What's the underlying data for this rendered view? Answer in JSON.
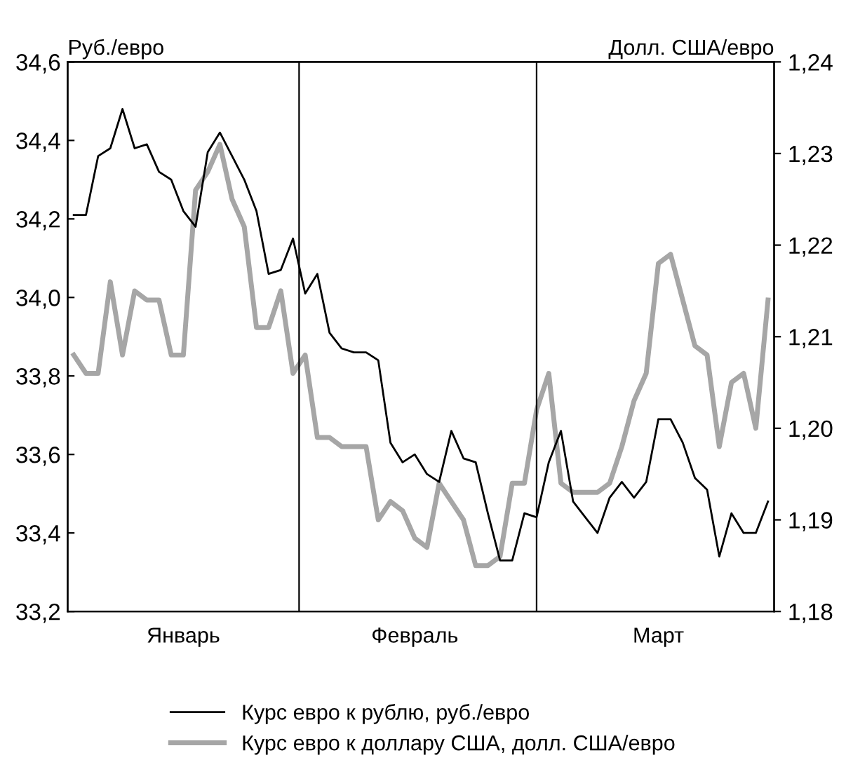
{
  "chart_data": {
    "type": "line",
    "ylabel": "Руб./евро",
    "y2label": "Долл. США/евро",
    "categories": [
      null,
      null,
      null,
      null,
      null,
      null,
      null,
      null,
      null,
      "Январь",
      null,
      null,
      null,
      null,
      null,
      null,
      null,
      null,
      null,
      null,
      null,
      null,
      null,
      null,
      null,
      null,
      null,
      null,
      "Февраль",
      null,
      null,
      null,
      null,
      null,
      null,
      null,
      null,
      null,
      null,
      null,
      null,
      null,
      null,
      null,
      null,
      null,
      null,
      null,
      "Март",
      null,
      null,
      null,
      null,
      null,
      null,
      null,
      null,
      null
    ],
    "series": [
      {
        "name": "Курс евро к рублю, руб./евро",
        "color": "#000000",
        "values": [
          34.21,
          34.21,
          34.36,
          34.38,
          34.48,
          34.38,
          34.39,
          34.32,
          34.3,
          34.22,
          34.18,
          34.37,
          34.42,
          34.36,
          34.3,
          34.22,
          34.06,
          34.07,
          34.15,
          34.01,
          34.06,
          33.91,
          33.87,
          33.86,
          33.86,
          33.84,
          33.63,
          33.58,
          33.6,
          33.55,
          33.53,
          33.66,
          33.59,
          33.58,
          33.45,
          33.33,
          33.33,
          33.45,
          33.44,
          33.58,
          33.66,
          33.48,
          33.44,
          33.4,
          33.49,
          33.53,
          33.49,
          33.53,
          33.69,
          33.69,
          33.63,
          33.54,
          33.51,
          33.34,
          33.45,
          33.4,
          33.4,
          33.48
        ]
      },
      {
        "name": "Курс евро к доллару США, долл. США/евро",
        "color": "#a6a6a6",
        "axis": "y2",
        "values": [
          1.208,
          1.206,
          1.206,
          1.216,
          1.208,
          1.215,
          1.214,
          1.214,
          1.208,
          1.208,
          1.226,
          1.228,
          1.231,
          1.225,
          1.222,
          1.211,
          1.211,
          1.215,
          1.206,
          1.208,
          1.199,
          1.199,
          1.198,
          1.198,
          1.198,
          1.19,
          1.192,
          1.191,
          1.188,
          1.187,
          1.194,
          1.192,
          1.19,
          1.185,
          1.185,
          1.186,
          1.194,
          1.194,
          1.202,
          1.206,
          1.194,
          1.193,
          1.193,
          1.193,
          1.194,
          1.198,
          1.203,
          1.206,
          1.218,
          1.219,
          1.214,
          1.209,
          1.208,
          1.198,
          1.205,
          1.206,
          1.2,
          1.214
        ]
      }
    ],
    "ylim": [
      33.2,
      34.6
    ],
    "yticks": [
      {
        "value": 33.2,
        "label": "33,2"
      },
      {
        "value": 33.4,
        "label": "33,4"
      },
      {
        "value": 33.6,
        "label": "33,6"
      },
      {
        "value": 33.8,
        "label": "33,8"
      },
      {
        "value": 34.0,
        "label": "34,0"
      },
      {
        "value": 34.2,
        "label": "34,2"
      },
      {
        "value": 34.4,
        "label": "34,4"
      },
      {
        "value": 34.6,
        "label": "34,6"
      }
    ],
    "y2lim": [
      1.18,
      1.24
    ],
    "y2ticks": [
      {
        "value": 1.18,
        "label": "1,18"
      },
      {
        "value": 1.19,
        "label": "1,19"
      },
      {
        "value": 1.2,
        "label": "1,20"
      },
      {
        "value": 1.21,
        "label": "1,21"
      },
      {
        "value": 1.22,
        "label": "1,22"
      },
      {
        "value": 1.23,
        "label": "1,23"
      },
      {
        "value": 1.24,
        "label": "1,24"
      }
    ],
    "grid": false,
    "legend": "bottom",
    "line_style": "solid",
    "marker": "none"
  }
}
